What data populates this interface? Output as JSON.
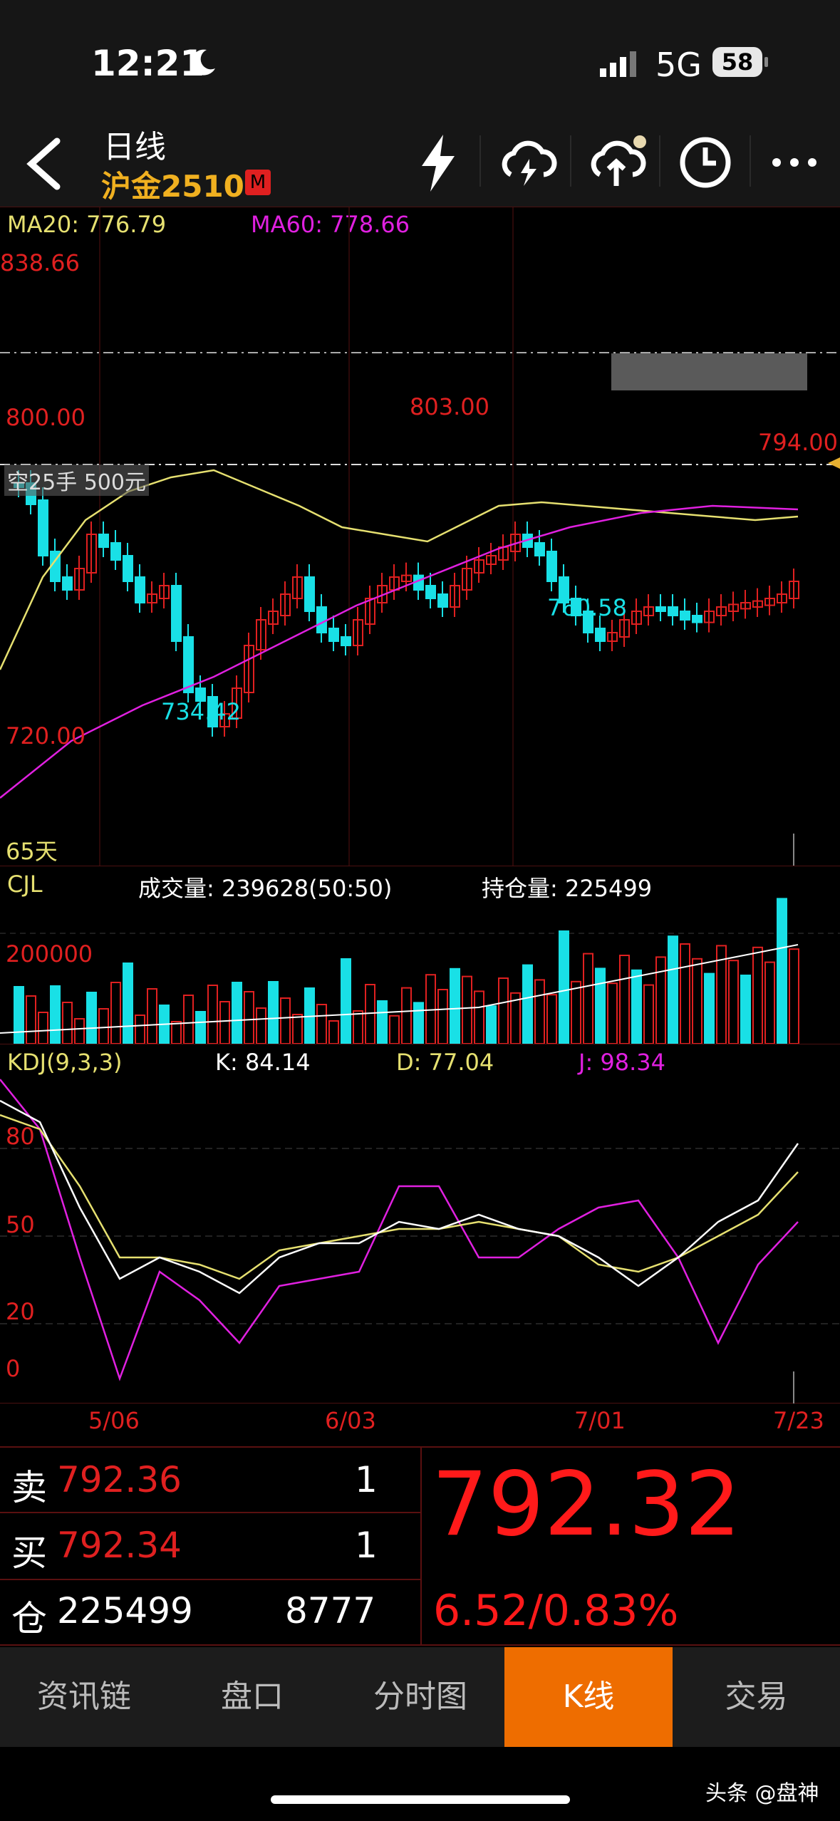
{
  "status_bar": {
    "time": "12:21",
    "network": "5G",
    "battery": "58"
  },
  "header": {
    "period": "日线",
    "symbol": "沪金2510",
    "badge": "M"
  },
  "indicators": {
    "ma20": "MA20: 776.79",
    "ma60": "MA60: 778.66"
  },
  "price_chart": {
    "high_label": "838.66",
    "level_800": "800.00",
    "level_720": "720.00",
    "peak_label": "803.00",
    "low_label_1": "734.42",
    "low_label_2": "760.58",
    "last_label": "794.00",
    "order_note": "空25手 500元",
    "days_label": "65天"
  },
  "volume": {
    "title": "CJL",
    "volume_text": "成交量: 239628(50:50)",
    "open_interest_text": "持仓量: 225499",
    "level_label": "200000"
  },
  "kdj": {
    "title": "KDJ(9,3,3)",
    "k": "K: 84.14",
    "d": "D: 77.04",
    "j": "J: 98.34",
    "levels": [
      "80",
      "50",
      "20",
      "0"
    ]
  },
  "dates": [
    "5/06",
    "6/03",
    "7/01",
    "7/23"
  ],
  "quote": {
    "sell_label": "卖",
    "sell_price": "792.36",
    "sell_qty": "1",
    "buy_label": "买",
    "buy_price": "792.34",
    "buy_qty": "1",
    "pos_label": "仓",
    "pos_value": "225499",
    "pos_change": "8777",
    "last_price": "792.32",
    "change": "6.52/0.83%"
  },
  "tabs": [
    {
      "label": "资讯链"
    },
    {
      "label": "盘口"
    },
    {
      "label": "分时图"
    },
    {
      "label": "K线"
    },
    {
      "label": "交易"
    }
  ],
  "watermark": "头条 @盘神",
  "colors": {
    "up": "#e02020",
    "down": "#19e0e6",
    "ma20": "#e6e070",
    "ma60": "#e020e0",
    "accent": "#ee6d00"
  }
}
